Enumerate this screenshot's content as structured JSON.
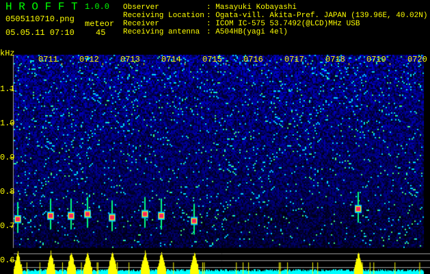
{
  "header": {
    "app_title": "H R O F F T",
    "version": "1.0.0",
    "filename": "0505110710.png",
    "datetime": "05.05.11 07:10",
    "meteor_label": "meteor",
    "meteor_count": "45",
    "info": [
      {
        "label": "Observer",
        "value": ": Masayuki Kobayashi"
      },
      {
        "label": "Receiving Location",
        "value": ": Ogata-vill. Akita-Pref. JAPAN (139.96E, 40.02N)"
      },
      {
        "label": "Receiver",
        "value": ": ICOM IC-575 53.7492(@LCD)MHz USB"
      },
      {
        "label": "Receiving antenna",
        "value": ": A504HB(yagi 4el)"
      }
    ]
  },
  "colors": {
    "text": "#ffff00",
    "title": "#00ff00",
    "histogram_base": "#00ffff",
    "histogram_peak": "#ffff00"
  },
  "chart_data": {
    "type": "heatmap",
    "ylabel": "kHz",
    "y_ticks": [
      "1.1",
      "1.0",
      "0.9",
      "0.8",
      "0.7",
      "0.6"
    ],
    "x_ticks": [
      "0711",
      "0712",
      "0713",
      "0714",
      "0715",
      "0716",
      "0717",
      "0718",
      "0719",
      "0720"
    ],
    "meteor_echoes": [
      {
        "time": "07:10.3",
        "khz": 0.72
      },
      {
        "time": "07:11.1",
        "khz": 0.73
      },
      {
        "time": "07:11.6",
        "khz": 0.73
      },
      {
        "time": "07:12.0",
        "khz": 0.735
      },
      {
        "time": "07:12.6",
        "khz": 0.725
      },
      {
        "time": "07:13.4",
        "khz": 0.735
      },
      {
        "time": "07:13.8",
        "khz": 0.73
      },
      {
        "time": "07:14.6",
        "khz": 0.715
      },
      {
        "time": "07:18.6",
        "khz": 0.75
      }
    ]
  }
}
